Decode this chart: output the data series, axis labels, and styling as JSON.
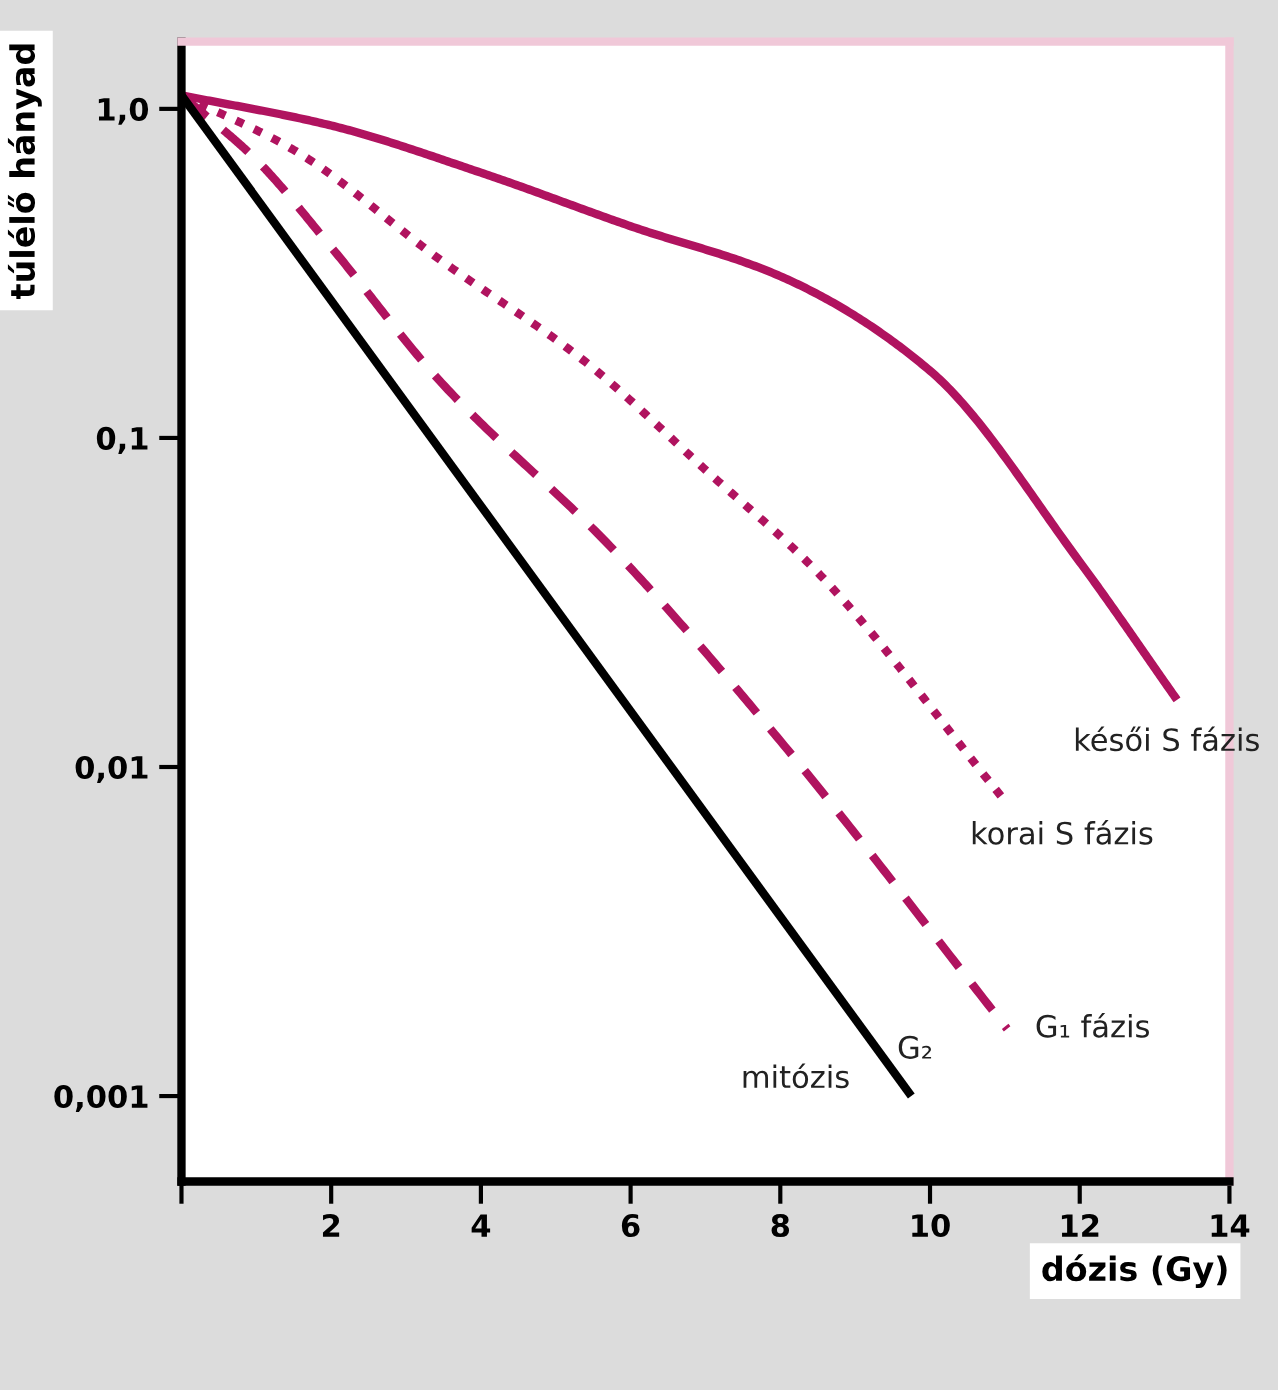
{
  "chart_data": {
    "type": "line",
    "xlabel": "dózis (Gy)",
    "ylabel": "túlélő hányad",
    "log": "y",
    "xlim": [
      0,
      14
    ],
    "xticks": [
      {
        "value": 0,
        "label": null
      },
      2,
      4,
      6,
      8,
      10,
      12,
      14
    ],
    "ylim": [
      0.00055,
      1.6
    ],
    "yticks": [
      {
        "value": 1,
        "label": "1,0"
      },
      {
        "value": 0.1,
        "label": "0,1"
      },
      {
        "value": 0.01,
        "label": "0,01"
      },
      {
        "value": 0.001,
        "label": "0,001"
      }
    ],
    "grid": false,
    "legend": false,
    "marker": "none",
    "series": [
      {
        "name": "késői S fázis",
        "color": "#b0135f",
        "line_style": "solid",
        "x": [
          0,
          2,
          4,
          6,
          8,
          10,
          12,
          13.3
        ],
        "values": [
          1.1,
          0.89,
          0.64,
          0.44,
          0.31,
          0.16,
          0.042,
          0.016
        ]
      },
      {
        "name": "korai S fázis",
        "color": "#b0135f",
        "line_style": "dotted",
        "x": [
          0,
          1.5,
          3.44,
          5.4,
          7,
          8.5,
          10.98
        ],
        "values": [
          1.1,
          0.75,
          0.35,
          0.17,
          0.08,
          0.039,
          0.008
        ]
      },
      {
        "name": "G₁ fázis",
        "color": "#b0135f",
        "line_style": "dashed",
        "x": [
          0,
          1,
          2,
          3.44,
          5.76,
          8,
          11.03
        ],
        "values": [
          1.1,
          0.7,
          0.38,
          0.15,
          0.046,
          0.012,
          0.0016
        ]
      },
      {
        "name": "mitózis",
        "color": "#000000",
        "line_style": "solid",
        "x": [
          0,
          9.75
        ],
        "values": [
          1.1,
          0.001
        ]
      }
    ],
    "annotations": [
      {
        "text": "G₂",
        "x": 9.3,
        "y": 0.00138
      }
    ]
  }
}
